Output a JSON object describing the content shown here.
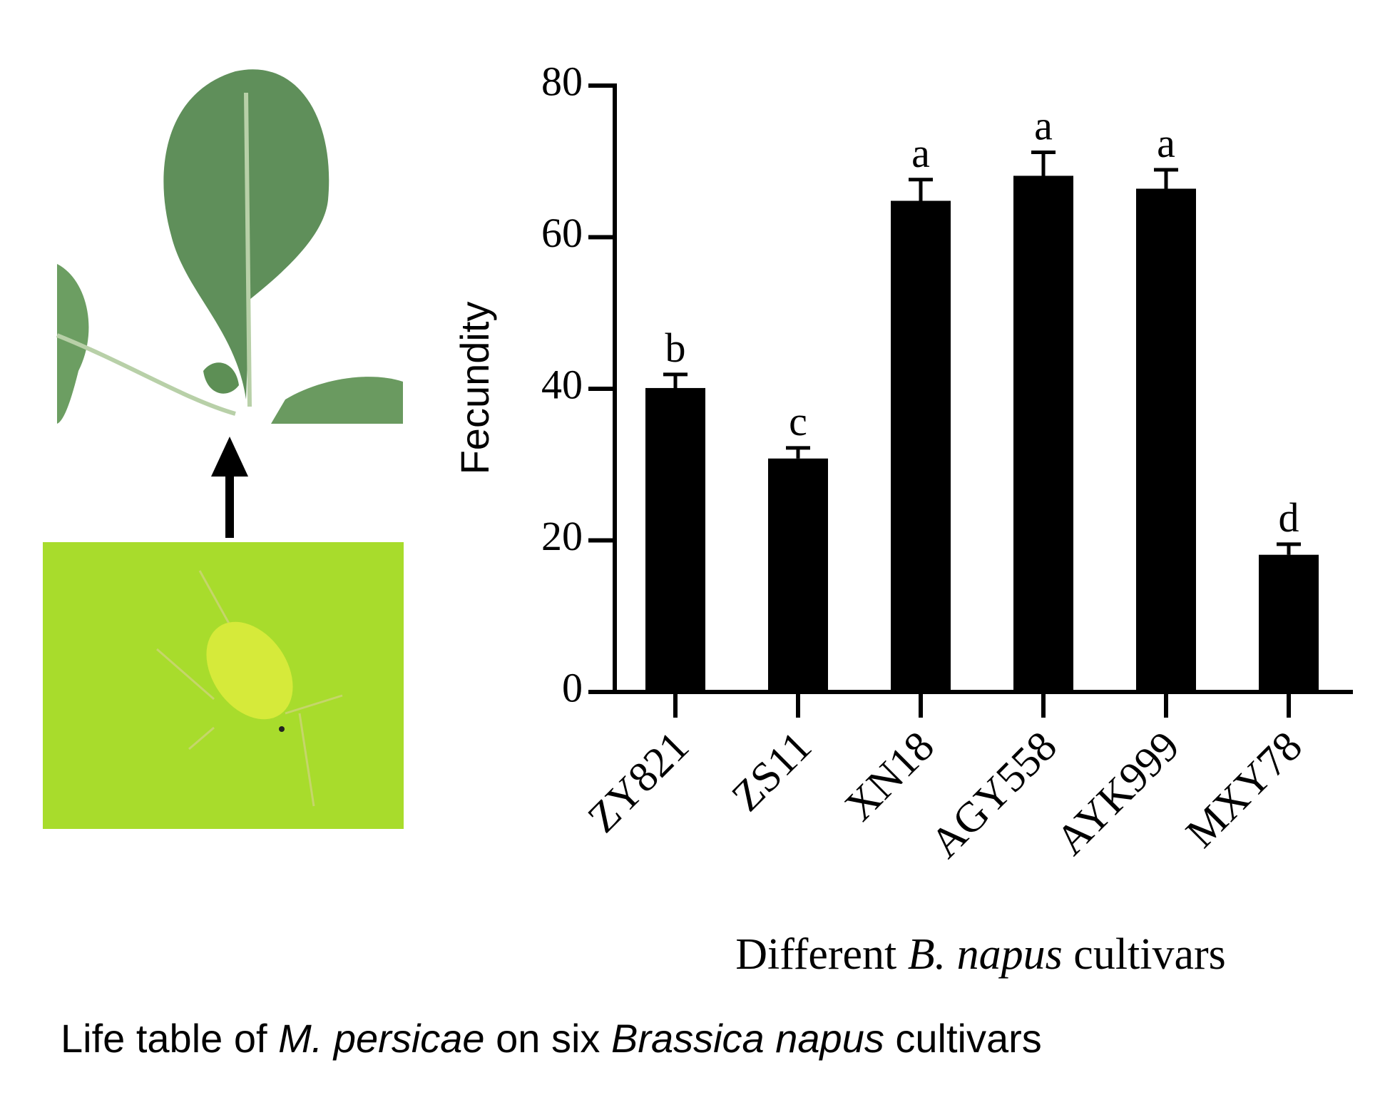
{
  "chart_data": {
    "type": "bar",
    "categories": [
      "ZY821",
      "ZS11",
      "XN18",
      "AGY558",
      "AYK999",
      "MXY78"
    ],
    "values": [
      40.1,
      30.8,
      64.8,
      68.1,
      66.4,
      18.1
    ],
    "errors": [
      1.8,
      1.4,
      2.8,
      3.1,
      2.5,
      1.4
    ],
    "annotations": [
      "b",
      "c",
      "a",
      "a",
      "a",
      "d"
    ],
    "color": "#000000",
    "ylabel": "Fecundity",
    "xlabel_parts": [
      {
        "text": "Different",
        "italic": false
      },
      {
        "text": "B. napus",
        "italic": true
      },
      {
        "text": "cultivars",
        "italic": false
      }
    ],
    "ylim": [
      0,
      80
    ],
    "yticks": [
      0,
      20,
      40,
      60,
      80
    ]
  },
  "caption_parts": [
    {
      "text": "Life table of",
      "italic": false
    },
    {
      "text": "M. persicae",
      "italic": true
    },
    {
      "text": "on six",
      "italic": false
    },
    {
      "text": "Brassica napus",
      "italic": true
    },
    {
      "text": "cultivars",
      "italic": false
    }
  ]
}
